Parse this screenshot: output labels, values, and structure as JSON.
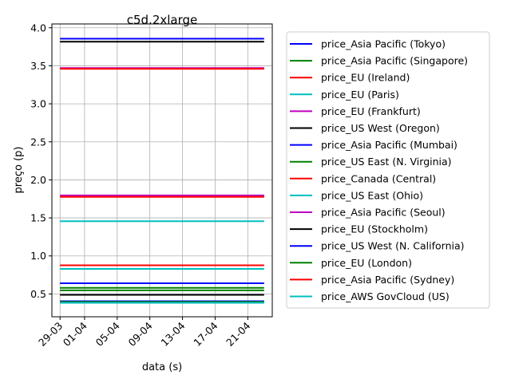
{
  "chart_data": {
    "type": "line",
    "title": "c5d.2xlarge",
    "xlabel": "data (s)",
    "ylabel": "preço (p)",
    "x_tick_labels": [
      "29-03",
      "01-04",
      "05-04",
      "09-04",
      "13-04",
      "17-04",
      "21-04"
    ],
    "x_tick_dates": [
      "2018-03-29",
      "2018-04-01",
      "2018-04-05",
      "2018-04-09",
      "2018-04-13",
      "2018-04-17",
      "2018-04-21"
    ],
    "x_range": [
      "2018-03-28",
      "2018-04-24"
    ],
    "x_data_start": "2018-03-29",
    "x_data_end": "2018-04-23",
    "ylim": [
      0.2,
      4.05
    ],
    "y_ticks": [
      0.5,
      1.0,
      1.5,
      2.0,
      2.5,
      3.0,
      3.5,
      4.0
    ],
    "y_tick_labels": [
      "0.5",
      "1.0",
      "1.5",
      "2.0",
      "2.5",
      "3.0",
      "3.5",
      "4.0"
    ],
    "grid": true,
    "legend_position": "outside-right",
    "series": [
      {
        "name": "price_Asia Pacific (Tokyo)",
        "color": "#0000ff",
        "value": 3.856
      },
      {
        "name": "price_Asia Pacific (Singapore)",
        "color": "#008000",
        "value": 0.58
      },
      {
        "name": "price_EU (Ireland)",
        "color": "#ff0000",
        "value": 0.876
      },
      {
        "name": "price_EU (Paris)",
        "color": "#00bfbf",
        "value": 0.83
      },
      {
        "name": "price_EU (Frankfurt)",
        "color": "#bf00bf",
        "value": 3.47
      },
      {
        "name": "price_US West (Oregon)",
        "color": "#000000",
        "value": 3.816
      },
      {
        "name": "price_Asia Pacific (Mumbai)",
        "color": "#0000ff",
        "value": 0.64
      },
      {
        "name": "price_US East (N. Virginia)",
        "color": "#008000",
        "value": 0.548
      },
      {
        "name": "price_EU (Ireland)",
        "color": "#ff0000",
        "value": 3.46
      },
      {
        "name": "price_Canada (Central)",
        "color": "#ff0000",
        "value": 1.786
      },
      {
        "name": "price_US East (Ohio)",
        "color": "#00bfbf",
        "value": 1.456
      },
      {
        "name": "price_Asia Pacific (Seoul)",
        "color": "#bf00bf",
        "value": 1.796
      },
      {
        "name": "price_EU (Stockholm)",
        "color": "#000000",
        "value": 0.488
      },
      {
        "name": "price_US West (N. California)",
        "color": "#0000ff",
        "value": 0.404
      },
      {
        "name": "price_EU (London)",
        "color": "#008000",
        "value": 0.396
      },
      {
        "name": "price_Asia Pacific (Sydney)",
        "color": "#ff0000",
        "value": 1.776
      },
      {
        "name": "price_AWS GovCloud (US)",
        "color": "#00bfbf",
        "value": 0.384
      }
    ],
    "legend": [
      {
        "name": "price_Asia Pacific (Tokyo)",
        "color": "#0000ff"
      },
      {
        "name": "price_Asia Pacific (Singapore)",
        "color": "#008000"
      },
      {
        "name": "price_EU (Ireland)",
        "color": "#ff0000"
      },
      {
        "name": "price_EU (Paris)",
        "color": "#00bfbf"
      },
      {
        "name": "price_EU (Frankfurt)",
        "color": "#bf00bf"
      },
      {
        "name": "price_US West (Oregon)",
        "color": "#000000"
      },
      {
        "name": "price_Asia Pacific (Mumbai)",
        "color": "#0000ff"
      },
      {
        "name": "price_US East (N. Virginia)",
        "color": "#008000"
      },
      {
        "name": "price_Canada (Central)",
        "color": "#ff0000"
      },
      {
        "name": "price_US East (Ohio)",
        "color": "#00bfbf"
      },
      {
        "name": "price_Asia Pacific (Seoul)",
        "color": "#bf00bf"
      },
      {
        "name": "price_EU (Stockholm)",
        "color": "#000000"
      },
      {
        "name": "price_US West (N. California)",
        "color": "#0000ff"
      },
      {
        "name": "price_EU (London)",
        "color": "#008000"
      },
      {
        "name": "price_Asia Pacific (Sydney)",
        "color": "#ff0000"
      },
      {
        "name": "price_AWS GovCloud (US)",
        "color": "#00bfbf"
      }
    ]
  }
}
